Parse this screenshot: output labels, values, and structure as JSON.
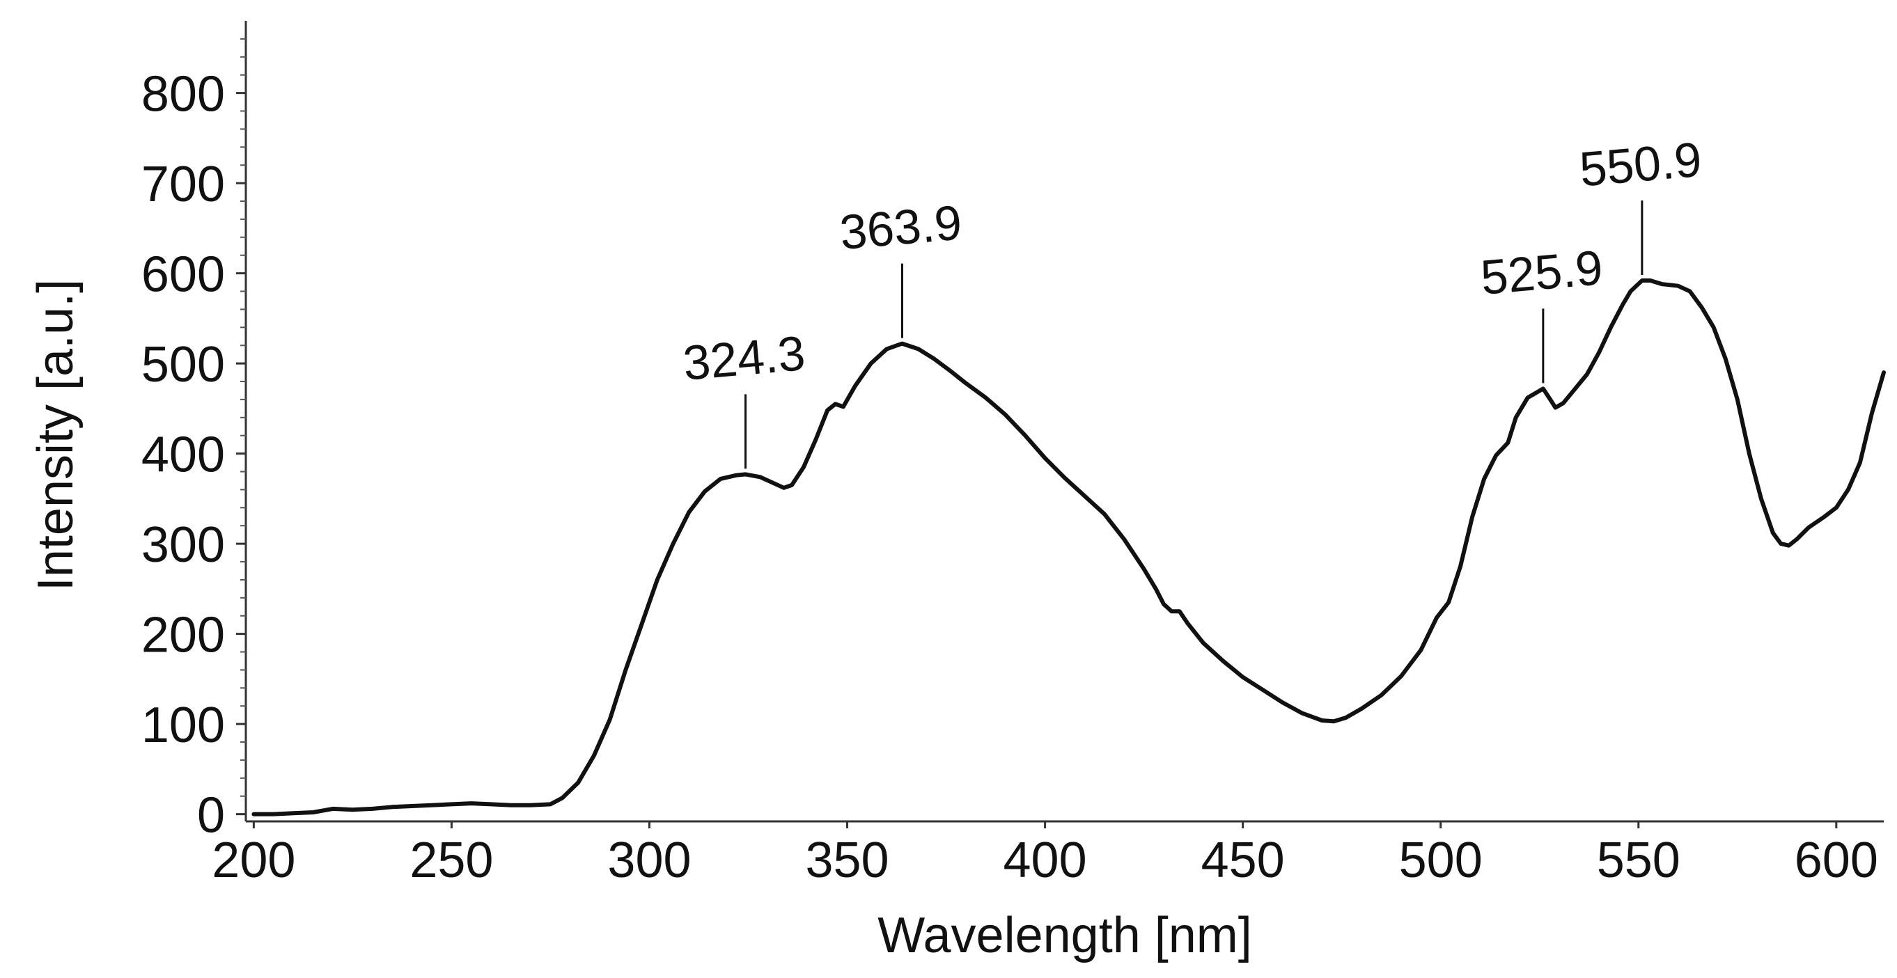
{
  "chart_data": {
    "type": "line",
    "title": "",
    "xlabel": "Wavelength [nm]",
    "ylabel": "Intensity [a.u.]",
    "xlim": [
      198,
      612
    ],
    "ylim": [
      -8,
      880
    ],
    "x_ticks": [
      200,
      250,
      300,
      350,
      400,
      450,
      500,
      550,
      600
    ],
    "y_ticks": [
      0,
      100,
      200,
      300,
      400,
      500,
      600,
      700,
      800
    ],
    "grid": false,
    "legend": "none",
    "series": [
      {
        "color": "#111111",
        "points": [
          [
            200,
            0
          ],
          [
            205,
            0
          ],
          [
            210,
            1
          ],
          [
            215,
            2
          ],
          [
            220,
            6
          ],
          [
            225,
            5
          ],
          [
            230,
            6
          ],
          [
            235,
            8
          ],
          [
            240,
            9
          ],
          [
            245,
            10
          ],
          [
            250,
            11
          ],
          [
            255,
            12
          ],
          [
            260,
            11
          ],
          [
            265,
            10
          ],
          [
            270,
            10
          ],
          [
            275,
            11
          ],
          [
            278,
            18
          ],
          [
            282,
            35
          ],
          [
            286,
            65
          ],
          [
            290,
            105
          ],
          [
            294,
            160
          ],
          [
            298,
            210
          ],
          [
            302,
            260
          ],
          [
            306,
            300
          ],
          [
            310,
            335
          ],
          [
            314,
            358
          ],
          [
            318,
            372
          ],
          [
            322,
            376
          ],
          [
            324.3,
            377
          ],
          [
            328,
            374
          ],
          [
            332,
            366
          ],
          [
            334,
            362
          ],
          [
            336,
            365
          ],
          [
            339,
            385
          ],
          [
            342,
            415
          ],
          [
            345,
            448
          ],
          [
            347,
            455
          ],
          [
            349,
            452
          ],
          [
            352,
            475
          ],
          [
            356,
            500
          ],
          [
            360,
            516
          ],
          [
            363.9,
            522
          ],
          [
            368,
            516
          ],
          [
            372,
            505
          ],
          [
            376,
            492
          ],
          [
            380,
            478
          ],
          [
            385,
            462
          ],
          [
            390,
            443
          ],
          [
            395,
            420
          ],
          [
            400,
            395
          ],
          [
            405,
            373
          ],
          [
            410,
            353
          ],
          [
            415,
            333
          ],
          [
            420,
            305
          ],
          [
            425,
            272
          ],
          [
            428,
            250
          ],
          [
            430,
            233
          ],
          [
            432,
            225
          ],
          [
            434,
            225
          ],
          [
            436,
            212
          ],
          [
            440,
            190
          ],
          [
            445,
            170
          ],
          [
            450,
            152
          ],
          [
            455,
            138
          ],
          [
            460,
            124
          ],
          [
            465,
            112
          ],
          [
            470,
            104
          ],
          [
            473,
            103
          ],
          [
            476,
            107
          ],
          [
            480,
            117
          ],
          [
            485,
            132
          ],
          [
            490,
            153
          ],
          [
            495,
            182
          ],
          [
            499,
            218
          ],
          [
            502,
            235
          ],
          [
            505,
            275
          ],
          [
            508,
            330
          ],
          [
            511,
            372
          ],
          [
            514,
            398
          ],
          [
            517,
            412
          ],
          [
            519,
            440
          ],
          [
            522,
            462
          ],
          [
            525.9,
            472
          ],
          [
            528,
            458
          ],
          [
            529,
            451
          ],
          [
            531,
            456
          ],
          [
            534,
            472
          ],
          [
            537,
            488
          ],
          [
            540,
            512
          ],
          [
            543,
            540
          ],
          [
            546,
            565
          ],
          [
            548,
            580
          ],
          [
            550.9,
            592
          ],
          [
            553,
            592
          ],
          [
            556,
            588
          ],
          [
            560,
            586
          ],
          [
            563,
            580
          ],
          [
            566,
            562
          ],
          [
            569,
            540
          ],
          [
            572,
            505
          ],
          [
            575,
            460
          ],
          [
            578,
            400
          ],
          [
            581,
            350
          ],
          [
            584,
            312
          ],
          [
            586,
            300
          ],
          [
            588,
            298
          ],
          [
            590,
            305
          ],
          [
            593,
            318
          ],
          [
            597,
            330
          ],
          [
            600,
            340
          ],
          [
            603,
            360
          ],
          [
            606,
            390
          ],
          [
            609,
            445
          ],
          [
            612,
            490
          ]
        ]
      }
    ],
    "annotations": [
      {
        "label": "324.3",
        "x": 324.3,
        "y": 377
      },
      {
        "label": "363.9",
        "x": 363.9,
        "y": 522
      },
      {
        "label": "525.9",
        "x": 525.9,
        "y": 472
      },
      {
        "label": "550.9",
        "x": 550.9,
        "y": 592
      }
    ]
  }
}
